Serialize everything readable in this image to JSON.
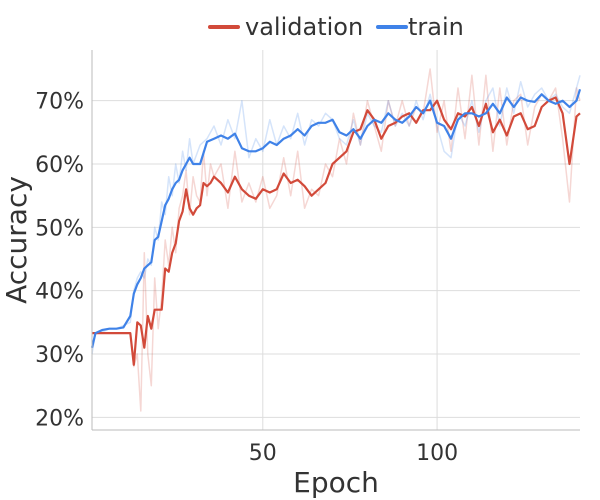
{
  "chart_data": {
    "type": "line",
    "xlabel": "Epoch",
    "ylabel": "Accuracy",
    "xlim": [
      1,
      141
    ],
    "ylim": [
      0.18,
      0.78
    ],
    "x_ticks": [
      50,
      100
    ],
    "x_tick_labels": [
      "50",
      "100"
    ],
    "y_ticks": [
      0.2,
      0.3,
      0.4,
      0.5,
      0.6,
      0.7
    ],
    "y_tick_labels": [
      "20%",
      "30%",
      "40%",
      "50%",
      "60%",
      "70%"
    ],
    "grid": true,
    "legend": {
      "placement": "top-center",
      "entries": [
        "validation",
        "train"
      ]
    },
    "series": [
      {
        "name": "validation",
        "color": "#d24a3a",
        "x": [
          1,
          5,
          10,
          12,
          13,
          14,
          15,
          16,
          17,
          18,
          19,
          20,
          21,
          22,
          23,
          24,
          25,
          26,
          27,
          28,
          29,
          30,
          31,
          32,
          33,
          34,
          35,
          36,
          38,
          40,
          42,
          44,
          46,
          48,
          50,
          52,
          54,
          56,
          58,
          60,
          62,
          64,
          66,
          68,
          70,
          72,
          74,
          76,
          78,
          80,
          82,
          84,
          86,
          88,
          90,
          92,
          94,
          96,
          98,
          100,
          102,
          104,
          106,
          108,
          110,
          112,
          114,
          116,
          118,
          120,
          122,
          124,
          126,
          128,
          130,
          132,
          134,
          136,
          138,
          140,
          141
        ],
        "values": [
          0.333,
          0.333,
          0.333,
          0.333,
          0.283,
          0.35,
          0.345,
          0.31,
          0.36,
          0.34,
          0.37,
          0.37,
          0.37,
          0.435,
          0.43,
          0.46,
          0.475,
          0.51,
          0.525,
          0.56,
          0.53,
          0.52,
          0.53,
          0.535,
          0.57,
          0.565,
          0.57,
          0.58,
          0.57,
          0.555,
          0.58,
          0.56,
          0.55,
          0.545,
          0.56,
          0.555,
          0.56,
          0.585,
          0.57,
          0.575,
          0.565,
          0.55,
          0.56,
          0.57,
          0.6,
          0.61,
          0.62,
          0.65,
          0.655,
          0.685,
          0.67,
          0.64,
          0.66,
          0.665,
          0.675,
          0.68,
          0.665,
          0.685,
          0.685,
          0.7,
          0.67,
          0.655,
          0.68,
          0.675,
          0.69,
          0.66,
          0.695,
          0.65,
          0.67,
          0.645,
          0.675,
          0.68,
          0.655,
          0.66,
          0.69,
          0.7,
          0.705,
          0.68,
          0.6,
          0.675,
          0.68
        ],
        "raw_values": [
          0.333,
          0.333,
          0.333,
          0.333,
          0.28,
          0.3,
          0.21,
          0.46,
          0.3,
          0.25,
          0.42,
          0.34,
          0.39,
          0.48,
          0.44,
          0.5,
          0.46,
          0.53,
          0.55,
          0.59,
          0.52,
          0.58,
          0.55,
          0.54,
          0.62,
          0.55,
          0.6,
          0.58,
          0.6,
          0.53,
          0.62,
          0.54,
          0.57,
          0.54,
          0.58,
          0.53,
          0.55,
          0.61,
          0.55,
          0.62,
          0.53,
          0.56,
          0.55,
          0.6,
          0.58,
          0.64,
          0.6,
          0.68,
          0.63,
          0.7,
          0.66,
          0.62,
          0.7,
          0.66,
          0.7,
          0.66,
          0.69,
          0.68,
          0.75,
          0.65,
          0.7,
          0.62,
          0.72,
          0.64,
          0.74,
          0.63,
          0.74,
          0.62,
          0.72,
          0.63,
          0.7,
          0.71,
          0.63,
          0.69,
          0.71,
          0.7,
          0.72,
          0.64,
          0.54,
          0.72,
          0.7
        ]
      },
      {
        "name": "train",
        "color": "#3f82e8",
        "x": [
          1,
          2,
          4,
          6,
          8,
          10,
          12,
          13,
          14,
          15,
          16,
          17,
          18,
          19,
          20,
          21,
          22,
          23,
          24,
          25,
          26,
          27,
          28,
          29,
          30,
          32,
          34,
          36,
          38,
          40,
          42,
          44,
          46,
          48,
          50,
          52,
          54,
          56,
          58,
          60,
          62,
          64,
          66,
          68,
          70,
          72,
          74,
          76,
          78,
          80,
          82,
          84,
          86,
          88,
          90,
          92,
          94,
          96,
          98,
          100,
          102,
          104,
          106,
          108,
          110,
          112,
          114,
          116,
          118,
          120,
          122,
          124,
          126,
          128,
          130,
          132,
          134,
          136,
          138,
          140,
          141
        ],
        "values": [
          0.31,
          0.333,
          0.338,
          0.34,
          0.34,
          0.342,
          0.36,
          0.395,
          0.41,
          0.42,
          0.435,
          0.44,
          0.445,
          0.48,
          0.485,
          0.51,
          0.535,
          0.545,
          0.56,
          0.57,
          0.575,
          0.59,
          0.6,
          0.61,
          0.6,
          0.6,
          0.635,
          0.64,
          0.645,
          0.64,
          0.648,
          0.625,
          0.62,
          0.62,
          0.625,
          0.635,
          0.63,
          0.64,
          0.645,
          0.655,
          0.645,
          0.66,
          0.665,
          0.665,
          0.67,
          0.65,
          0.645,
          0.655,
          0.64,
          0.66,
          0.67,
          0.665,
          0.68,
          0.67,
          0.665,
          0.675,
          0.69,
          0.68,
          0.7,
          0.665,
          0.66,
          0.64,
          0.67,
          0.68,
          0.68,
          0.675,
          0.68,
          0.695,
          0.68,
          0.705,
          0.69,
          0.705,
          0.7,
          0.698,
          0.71,
          0.7,
          0.695,
          0.7,
          0.69,
          0.7,
          0.718
        ],
        "raw_values": [
          0.3,
          0.333,
          0.335,
          0.34,
          0.34,
          0.345,
          0.35,
          0.4,
          0.42,
          0.43,
          0.42,
          0.45,
          0.44,
          0.5,
          0.48,
          0.54,
          0.52,
          0.58,
          0.55,
          0.6,
          0.57,
          0.62,
          0.59,
          0.64,
          0.6,
          0.63,
          0.64,
          0.66,
          0.63,
          0.67,
          0.64,
          0.7,
          0.61,
          0.64,
          0.62,
          0.67,
          0.63,
          0.66,
          0.64,
          0.68,
          0.63,
          0.67,
          0.66,
          0.68,
          0.67,
          0.64,
          0.63,
          0.67,
          0.63,
          0.68,
          0.66,
          0.65,
          0.7,
          0.66,
          0.68,
          0.66,
          0.7,
          0.67,
          0.71,
          0.66,
          0.62,
          0.61,
          0.68,
          0.66,
          0.7,
          0.65,
          0.7,
          0.72,
          0.66,
          0.72,
          0.68,
          0.73,
          0.69,
          0.71,
          0.72,
          0.7,
          0.71,
          0.69,
          0.68,
          0.72,
          0.74
        ]
      }
    ]
  }
}
